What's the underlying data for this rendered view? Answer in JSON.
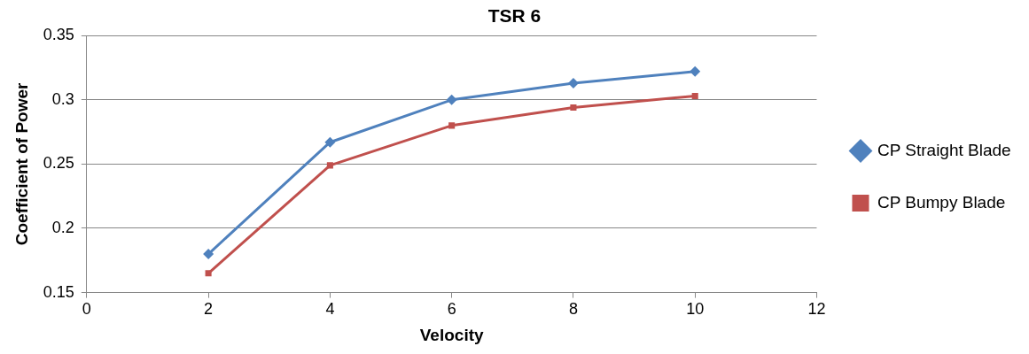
{
  "chart_data": {
    "type": "line",
    "title": "TSR 6",
    "xlabel": "Velocity",
    "ylabel": "Coefficient of Power",
    "x": [
      2,
      4,
      6,
      8,
      10
    ],
    "series": [
      {
        "name": "CP Straight Blade",
        "color": "#4f81bd",
        "marker": "diamond",
        "values": [
          0.18,
          0.267,
          0.3,
          0.313,
          0.322
        ]
      },
      {
        "name": "CP Bumpy Blade",
        "color": "#c0504d",
        "marker": "square",
        "values": [
          0.165,
          0.249,
          0.28,
          0.294,
          0.303
        ]
      }
    ],
    "xlim": [
      0,
      12
    ],
    "xticks": [
      0,
      2,
      4,
      6,
      8,
      10,
      12
    ],
    "ylim": [
      0.15,
      0.35
    ],
    "yticks": [
      0.15,
      0.2,
      0.25,
      0.3,
      0.35
    ],
    "grid": "y",
    "legend": "right",
    "line_style": "solid"
  }
}
